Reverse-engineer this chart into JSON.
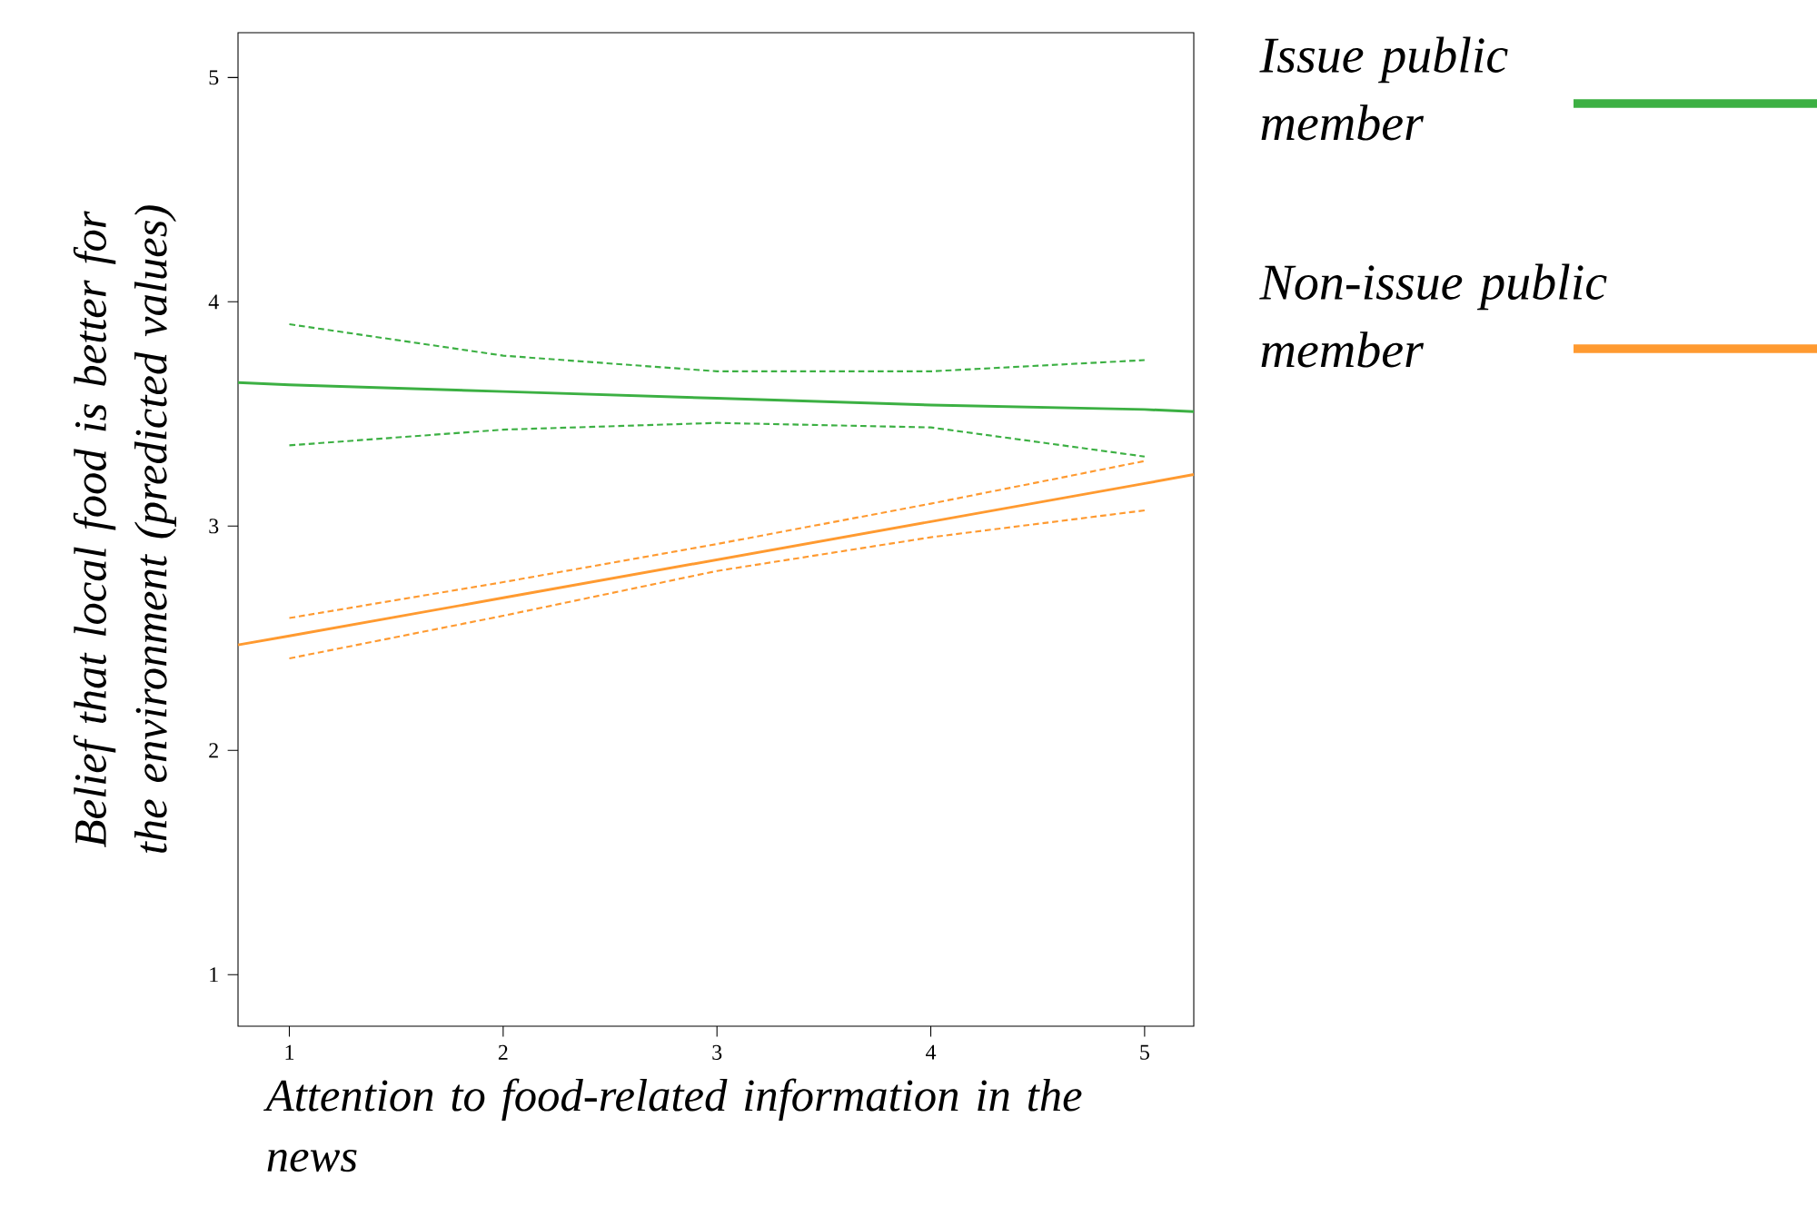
{
  "chart_data": {
    "type": "line",
    "xlabel": "Attention to food-related information in the news",
    "ylabel": "Belief that local food is better for the environment (predicted values)",
    "xlim": [
      0.76,
      5.23
    ],
    "ylim": [
      0.77,
      5.2
    ],
    "xticks": [
      1,
      2,
      3,
      4,
      5
    ],
    "yticks": [
      1,
      2,
      3,
      4,
      5
    ],
    "grid": false,
    "legend": "right",
    "marker": "none",
    "series": [
      {
        "name": "Issue public member",
        "color": "#3cb043",
        "x": [
          0.76,
          1,
          2,
          3,
          4,
          5,
          5.23
        ],
        "values": [
          3.64,
          3.63,
          3.6,
          3.57,
          3.54,
          3.52,
          3.51
        ]
      },
      {
        "name": "Non-issue public member",
        "color": "#ff9a30",
        "x": [
          0.76,
          1,
          2,
          3,
          4,
          5,
          5.23
        ],
        "values": [
          2.47,
          2.51,
          2.68,
          2.85,
          3.02,
          3.19,
          3.23
        ]
      },
      {
        "color": "#3cb043",
        "line_style": "dashed",
        "x": [
          1,
          2,
          3,
          4,
          5
        ],
        "values": [
          3.9,
          3.76,
          3.69,
          3.69,
          3.74
        ]
      },
      {
        "color": "#3cb043",
        "line_style": "dashed",
        "x": [
          1,
          2,
          3,
          4,
          5
        ],
        "values": [
          3.36,
          3.43,
          3.46,
          3.44,
          3.31
        ]
      },
      {
        "color": "#ff9a30",
        "line_style": "dashed",
        "x": [
          1,
          2,
          3,
          4,
          5
        ],
        "values": [
          2.59,
          2.75,
          2.92,
          3.1,
          3.29
        ]
      },
      {
        "color": "#ff9a30",
        "line_style": "dashed",
        "x": [
          1,
          2,
          3,
          4,
          5
        ],
        "values": [
          2.41,
          2.6,
          2.8,
          2.95,
          3.07
        ]
      }
    ]
  }
}
